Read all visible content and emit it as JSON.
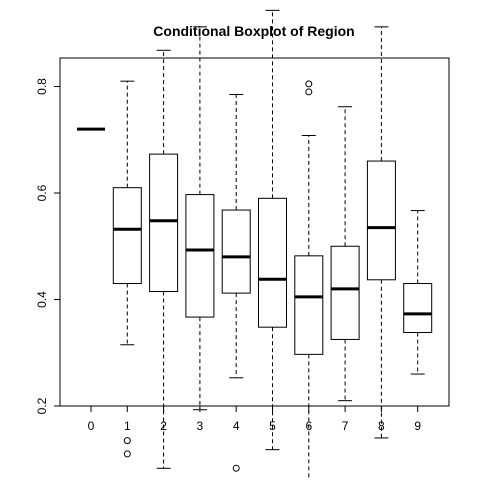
{
  "chart_data": {
    "type": "boxplot",
    "title": "Conditional Boxplot of Region",
    "xlabel": "",
    "ylabel": "",
    "categories": [
      "0",
      "1",
      "2",
      "3",
      "4",
      "5",
      "6",
      "7",
      "8",
      "9"
    ],
    "y_ticks": [
      "0.2",
      "0.4",
      "0.6",
      "0.8"
    ],
    "ylim": [
      0.0,
      0.98
    ],
    "grid": false,
    "boxes": [
      {
        "category": "0",
        "min": 0.72,
        "q1": 0.72,
        "median": 0.72,
        "q3": 0.72,
        "max": 0.72,
        "outliers": []
      },
      {
        "category": "1",
        "min": 0.315,
        "q1": 0.43,
        "median": 0.532,
        "q3": 0.61,
        "max": 0.81,
        "outliers": [
          0.135,
          0.11
        ]
      },
      {
        "category": "2",
        "min": 0.083,
        "q1": 0.415,
        "median": 0.548,
        "q3": 0.673,
        "max": 0.868,
        "outliers": []
      },
      {
        "category": "3",
        "min": 0.193,
        "q1": 0.367,
        "median": 0.493,
        "q3": 0.597,
        "max": 0.912,
        "outliers": []
      },
      {
        "category": "4",
        "min": 0.253,
        "q1": 0.412,
        "median": 0.48,
        "q3": 0.568,
        "max": 0.785,
        "outliers": [
          0.083
        ]
      },
      {
        "category": "5",
        "min": 0.118,
        "q1": 0.348,
        "median": 0.438,
        "q3": 0.59,
        "max": 0.943,
        "outliers": []
      },
      {
        "category": "6",
        "min": 0.038,
        "q1": 0.297,
        "median": 0.405,
        "q3": 0.482,
        "max": 0.708,
        "outliers": [
          0.805,
          0.79
        ]
      },
      {
        "category": "7",
        "min": 0.21,
        "q1": 0.325,
        "median": 0.42,
        "q3": 0.5,
        "max": 0.762,
        "outliers": []
      },
      {
        "category": "8",
        "min": 0.14,
        "q1": 0.437,
        "median": 0.535,
        "q3": 0.66,
        "max": 0.912,
        "outliers": []
      },
      {
        "category": "9",
        "min": 0.26,
        "q1": 0.338,
        "median": 0.373,
        "q3": 0.43,
        "max": 0.567,
        "outliers": []
      }
    ]
  }
}
